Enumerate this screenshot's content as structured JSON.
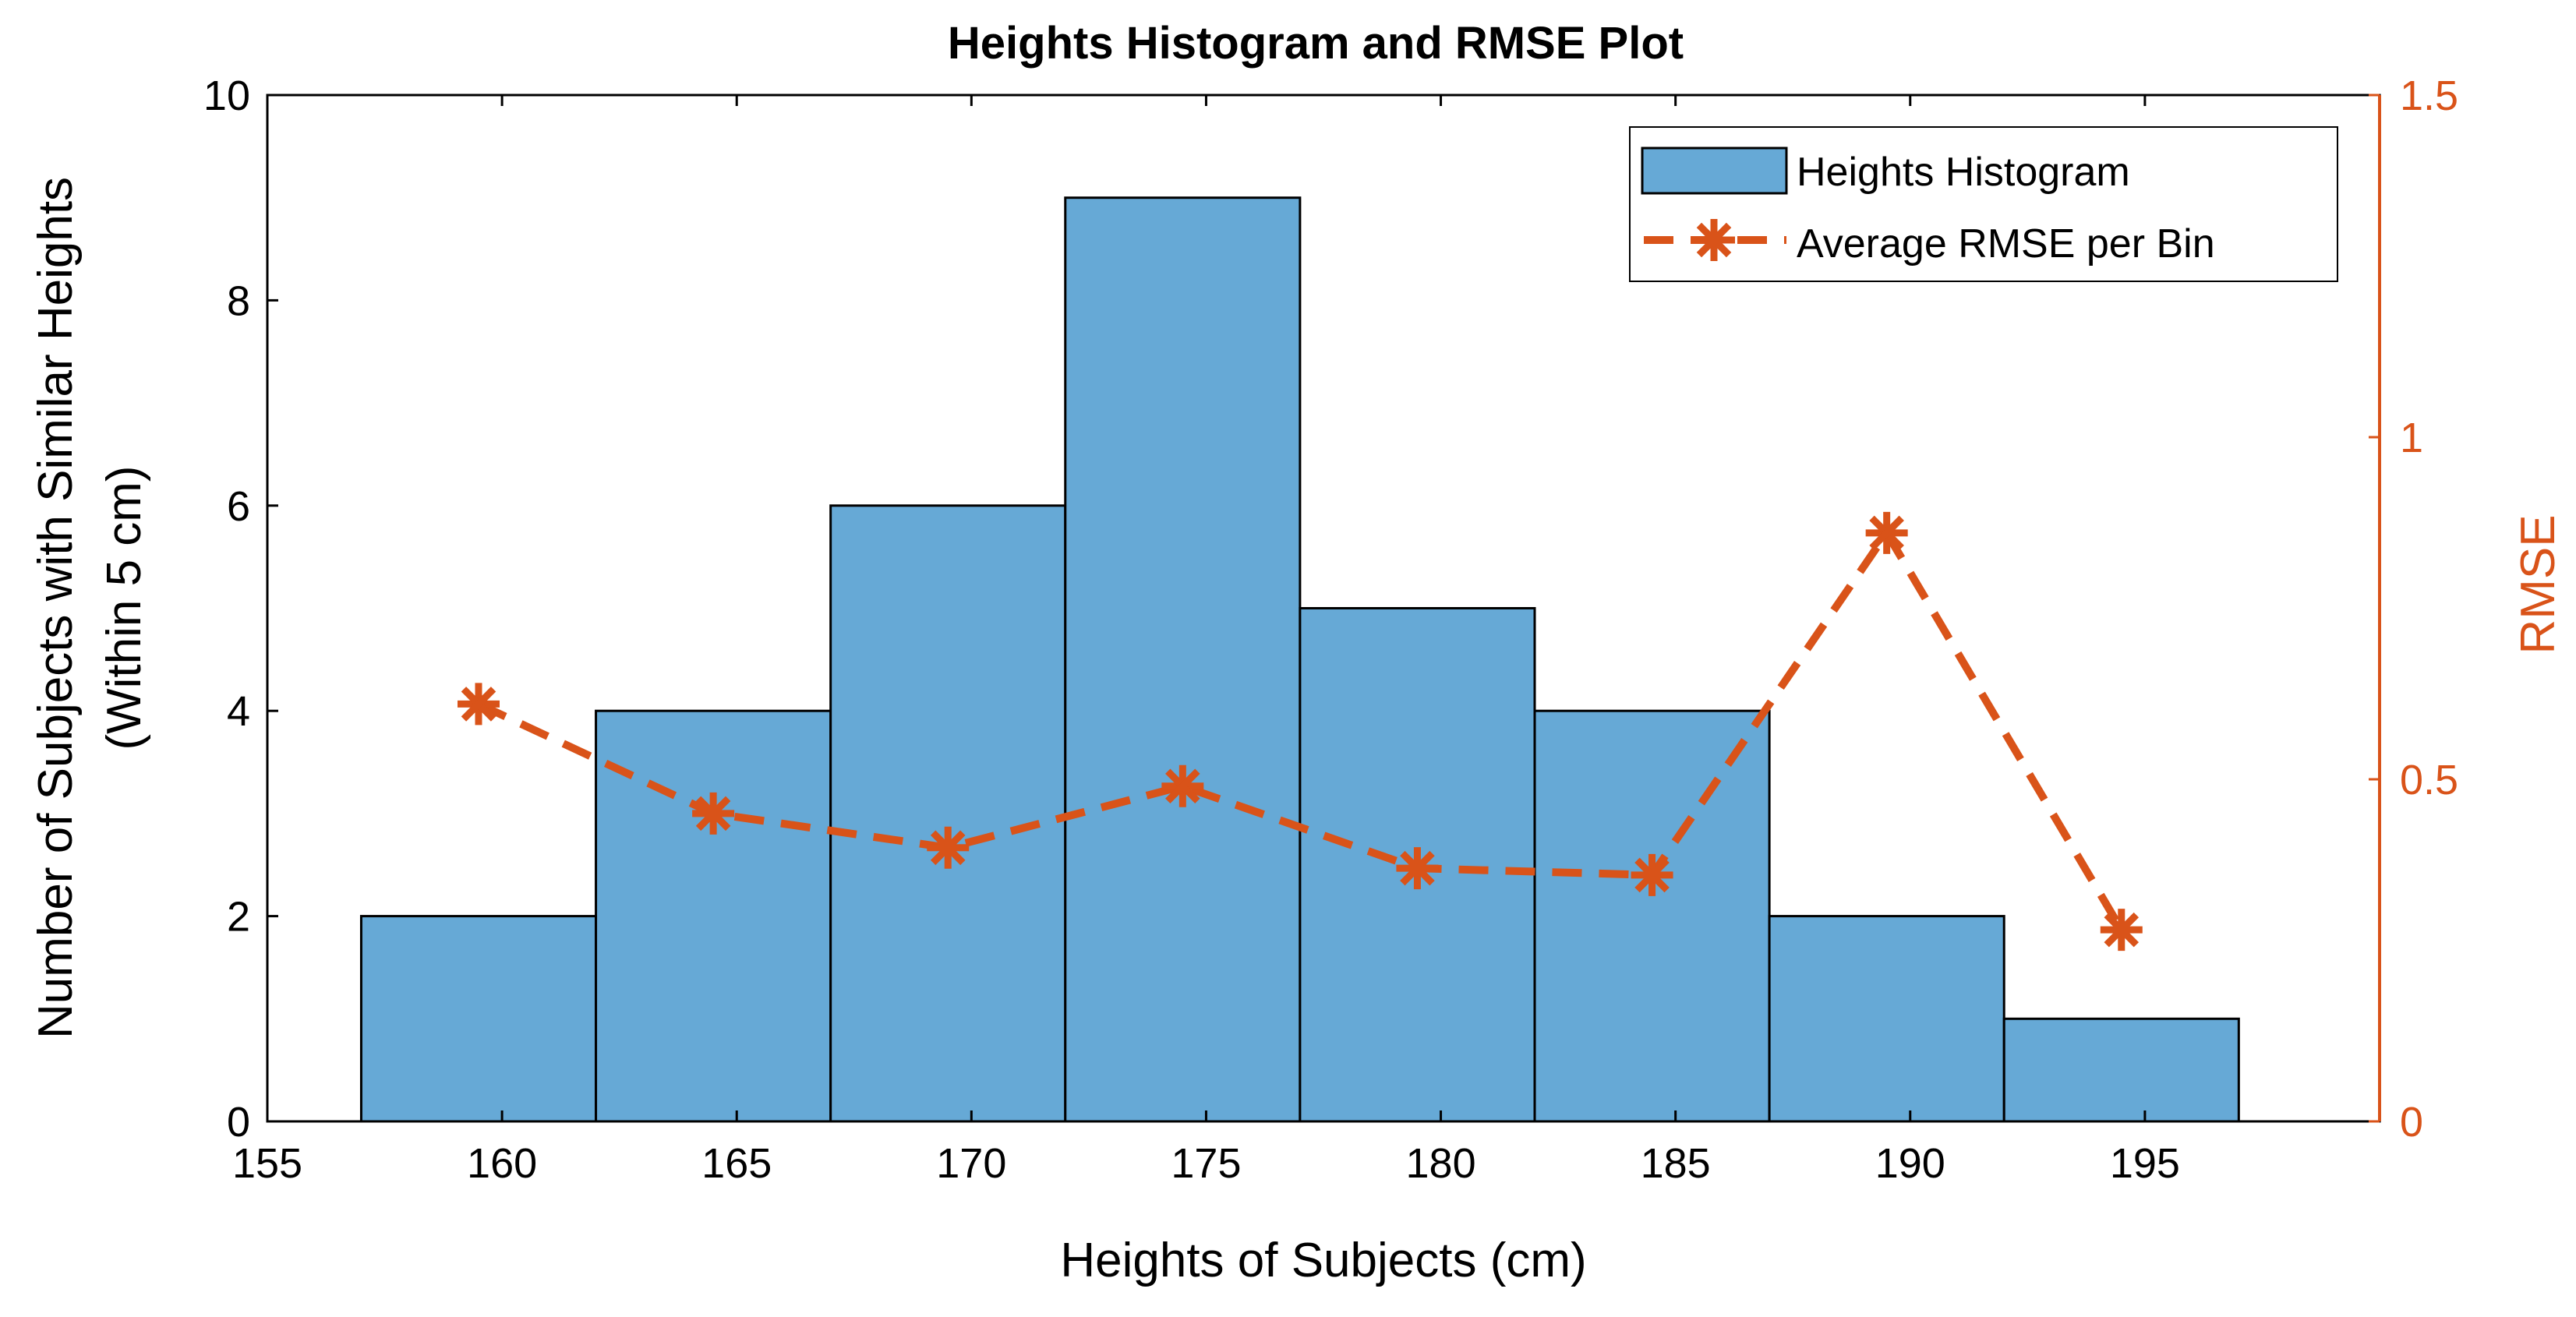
{
  "chart_data": {
    "type": "bar+line",
    "title": "Heights Histogram and RMSE Plot",
    "xlabel": "Heights of Subjects (cm)",
    "ylabel_left_line1": "Number of Subjects with Similar Heights",
    "ylabel_left_line2": "(Within 5 cm)",
    "ylabel_right": "RMSE",
    "xlim": [
      155,
      200
    ],
    "ylim_left": [
      0,
      10
    ],
    "ylim_right": [
      0,
      1.5
    ],
    "x_ticks": [
      155,
      160,
      165,
      170,
      175,
      180,
      185,
      190,
      195
    ],
    "y_left_ticks": [
      0,
      2,
      4,
      6,
      8,
      10
    ],
    "y_right_ticks": [
      0,
      0.5,
      1,
      1.5
    ],
    "x_tick_labels": [
      "155",
      "160",
      "165",
      "170",
      "175",
      "180",
      "185",
      "190",
      "195"
    ],
    "y_left_tick_labels": [
      "0",
      "2",
      "4",
      "6",
      "8",
      "10"
    ],
    "y_right_tick_labels": [
      "0",
      "0.5",
      "1",
      "1.5"
    ],
    "histogram": {
      "name": "Heights Histogram",
      "bin_edges": [
        157,
        162,
        167,
        172,
        177,
        182,
        187,
        192,
        197
      ],
      "counts": [
        2,
        4,
        6,
        9,
        5,
        4,
        2,
        1
      ]
    },
    "rmse_series": {
      "name": "Average RMSE per Bin",
      "x": [
        159.5,
        164.5,
        169.5,
        174.5,
        179.5,
        184.5,
        189.5,
        194.5
      ],
      "y": [
        0.61,
        0.45,
        0.4,
        0.49,
        0.37,
        0.36,
        0.86,
        0.28
      ]
    },
    "legend_position": "top-right",
    "colors": {
      "bar_fill": "#66a9d6",
      "bar_edge": "#000000",
      "rmse": "#d95319",
      "axis": "#000000"
    }
  }
}
